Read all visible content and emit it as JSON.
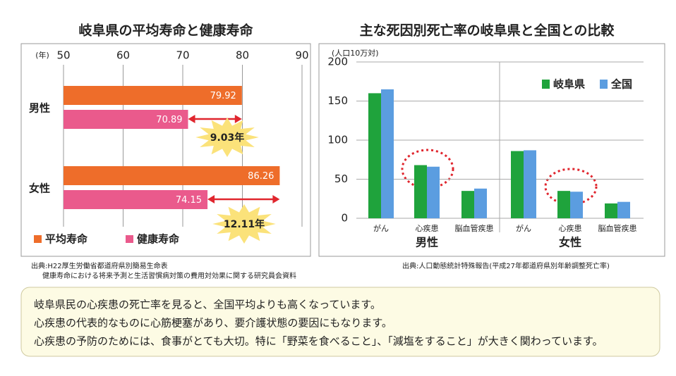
{
  "chart_data": [
    {
      "type": "hbar",
      "title": "岐阜県の平均寿命と健康寿命",
      "axis_label": "(年)",
      "categories": [
        "男性",
        "女性"
      ],
      "series": [
        {
          "name": "平均寿命",
          "color": "#ee6d2a",
          "values": [
            79.92,
            86.26
          ]
        },
        {
          "name": "健康寿命",
          "color": "#ea5a8c",
          "values": [
            70.89,
            74.15
          ]
        }
      ],
      "xlim": [
        50,
        90
      ],
      "xticks": [
        50,
        60,
        70,
        80,
        90
      ],
      "grid": true,
      "annotations": [
        "9.03年",
        "12.11年"
      ]
    },
    {
      "type": "bar",
      "title": "主な死因別死亡率の岐阜県と全国との比較",
      "axis_label": "(人口10万対)",
      "categories": [
        "がん",
        "心疾患",
        "脳血管疾患",
        "がん",
        "心疾患",
        "脳血管疾患"
      ],
      "groups": [
        "男性",
        "女性"
      ],
      "series": [
        {
          "name": "岐阜県",
          "color": "#1fa33c",
          "values": [
            160,
            68,
            35,
            86,
            35,
            19
          ]
        },
        {
          "name": "全国",
          "color": "#5b9de0",
          "values": [
            165,
            66,
            38,
            87,
            34,
            21
          ]
        }
      ],
      "ylim": [
        0,
        200
      ],
      "yticks": [
        0,
        50,
        100,
        150,
        200
      ],
      "grid": true,
      "legend": "top-right"
    }
  ],
  "sources": [
    "出典:H22厚生労働省都道府県別簡易生命表",
    "健康寿命における将来予測と生活習慣病対策の費用対効果に関する研究員会資料",
    "出典:人口動態統計特殊報告(平成27年都道府県別年齢調整死亡率)"
  ],
  "message": [
    "岐阜県民の心疾患の死亡率を見ると、全国平均よりも高くなっています。",
    "心疾患の代表的なものに心筋梗塞があり、要介護状態の要因にもなります。",
    "心疾患の予防のためには、食事がとても大切。特に「野菜を食べること」、「減塩をすること」が大きく関わっています。"
  ]
}
